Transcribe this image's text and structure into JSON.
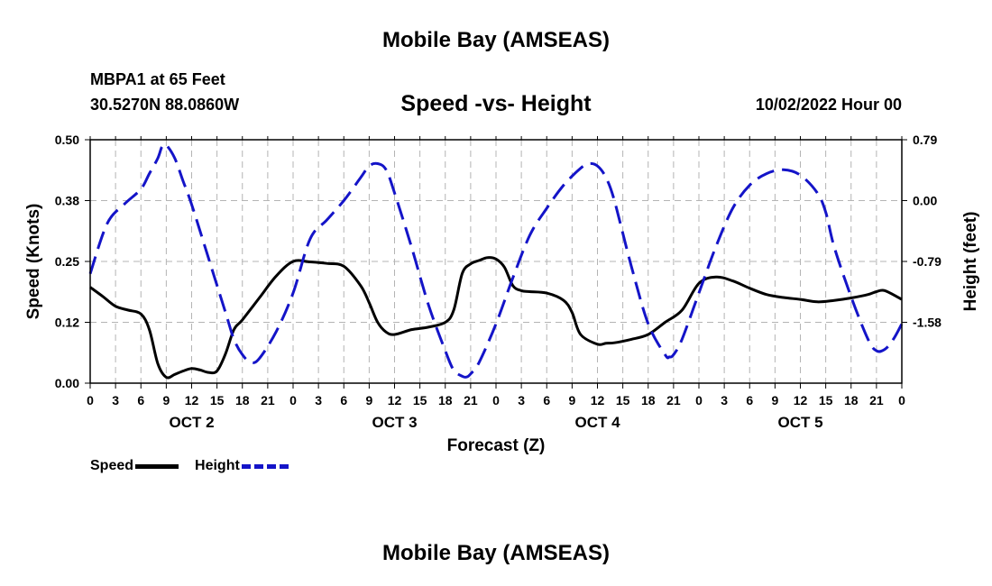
{
  "header": {
    "title": "Mobile Bay (AMSEAS)",
    "station": "MBPA1 at 65 Feet",
    "coords": "30.5270N  88.0860W",
    "chart_title": "Speed -vs- Height",
    "datetime": "10/02/2022 Hour 00"
  },
  "footer": {
    "title": "Mobile Bay (AMSEAS)"
  },
  "legend": {
    "speed_label": "Speed",
    "height_label": "Height"
  },
  "colors": {
    "speed": "#000000",
    "height": "#1414c8",
    "grid": "#b4b4b4"
  },
  "chart_data": {
    "type": "line",
    "title": "Speed -vs- Height",
    "xlabel": "Forecast (Z)",
    "ylabel": "Speed (Knots)",
    "y2label": "Height (feet)",
    "x_range": [
      0,
      96
    ],
    "x_tick_step": 3,
    "x_tick_labels": [
      "0",
      "3",
      "6",
      "9",
      "12",
      "15",
      "18",
      "21",
      "0",
      "3",
      "6",
      "9",
      "12",
      "15",
      "18",
      "21",
      "0",
      "3",
      "6",
      "9",
      "12",
      "15",
      "18",
      "21",
      "0",
      "3",
      "6",
      "9",
      "12",
      "15",
      "18",
      "21",
      "0"
    ],
    "day_labels": [
      {
        "label": "OCT 2",
        "x": 12
      },
      {
        "label": "OCT 3",
        "x": 36
      },
      {
        "label": "OCT 4",
        "x": 60
      },
      {
        "label": "OCT 5",
        "x": 84
      }
    ],
    "ylim": [
      0,
      0.5
    ],
    "y_ticks": [
      {
        "value": 0.0,
        "label": "0.00"
      },
      {
        "value": 0.125,
        "label": "0.12"
      },
      {
        "value": 0.25,
        "label": "0.25"
      },
      {
        "value": 0.375,
        "label": "0.38"
      },
      {
        "value": 0.5,
        "label": "0.50"
      }
    ],
    "y2lim": [
      -2.37,
      0.79
    ],
    "y2_ticks": [
      {
        "value": 0.79,
        "label": "0.79"
      },
      {
        "value": 0.0,
        "label": "0.00"
      },
      {
        "value": -0.79,
        "label": "-0.79"
      },
      {
        "value": -1.58,
        "label": "-1.58"
      }
    ],
    "series": [
      {
        "name": "Speed",
        "axis": "left",
        "style": "solid",
        "x": [
          0,
          1.5,
          3,
          4.5,
          6,
          7,
          8,
          9,
          10,
          11,
          12,
          13,
          14,
          15,
          16,
          17,
          18,
          20,
          22,
          24,
          26,
          28,
          30,
          32,
          33,
          34,
          35,
          36,
          38,
          40,
          42,
          43,
          44,
          45,
          46,
          47,
          48,
          49,
          50,
          51,
          52,
          54,
          56,
          57,
          58,
          60,
          61,
          62,
          64,
          66,
          68,
          70,
          72,
          74,
          76,
          78,
          80,
          82,
          84,
          86,
          88,
          90,
          92,
          93,
          94,
          96
        ],
        "values": [
          0.197,
          0.178,
          0.158,
          0.15,
          0.142,
          0.11,
          0.04,
          0.012,
          0.018,
          0.025,
          0.03,
          0.027,
          0.022,
          0.025,
          0.06,
          0.11,
          0.13,
          0.175,
          0.22,
          0.25,
          0.249,
          0.246,
          0.24,
          0.2,
          0.165,
          0.125,
          0.105,
          0.1,
          0.11,
          0.115,
          0.125,
          0.15,
          0.225,
          0.245,
          0.252,
          0.258,
          0.255,
          0.238,
          0.2,
          0.19,
          0.188,
          0.185,
          0.17,
          0.145,
          0.1,
          0.08,
          0.082,
          0.083,
          0.09,
          0.1,
          0.125,
          0.15,
          0.205,
          0.218,
          0.21,
          0.195,
          0.182,
          0.176,
          0.172,
          0.167,
          0.17,
          0.175,
          0.182,
          0.188,
          0.19,
          0.172
        ]
      },
      {
        "name": "Height",
        "axis": "right",
        "style": "dashed",
        "x": [
          0,
          2,
          4,
          6,
          7,
          8,
          8.5,
          9,
          10,
          11,
          12,
          14,
          16,
          17,
          18,
          19,
          20,
          22,
          24,
          26,
          28,
          30,
          32,
          33,
          34,
          35,
          36,
          38,
          40,
          42,
          43,
          44,
          44.5,
          45,
          46,
          48,
          50,
          52,
          54,
          56,
          58,
          59,
          60,
          61,
          62,
          64,
          66,
          68,
          68.5,
          69,
          70,
          72,
          74,
          76,
          78,
          80,
          82,
          84,
          86,
          87,
          88,
          90,
          92,
          93,
          94,
          95,
          96
        ],
        "values": [
          -0.95,
          -0.3,
          -0.05,
          0.15,
          0.35,
          0.55,
          0.7,
          0.72,
          0.55,
          0.25,
          -0.05,
          -0.75,
          -1.45,
          -1.8,
          -2.0,
          -2.1,
          -2.05,
          -1.7,
          -1.2,
          -0.5,
          -0.25,
          0.0,
          0.3,
          0.45,
          0.48,
          0.4,
          0.1,
          -0.6,
          -1.35,
          -1.95,
          -2.2,
          -2.28,
          -2.29,
          -2.25,
          -2.1,
          -1.6,
          -1.0,
          -0.45,
          -0.1,
          0.2,
          0.42,
          0.48,
          0.45,
          0.3,
          0.0,
          -0.85,
          -1.6,
          -2.0,
          -2.03,
          -2.0,
          -1.8,
          -1.2,
          -0.6,
          -0.1,
          0.2,
          0.35,
          0.4,
          0.33,
          0.1,
          -0.15,
          -0.6,
          -1.25,
          -1.8,
          -1.95,
          -1.93,
          -1.8,
          -1.6
        ]
      }
    ]
  }
}
